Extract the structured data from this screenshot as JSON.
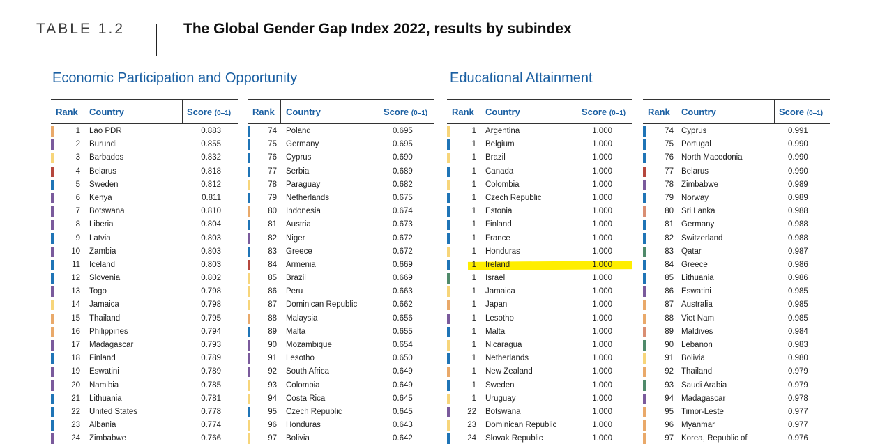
{
  "header": {
    "table_label": "TABLE 1.2",
    "title": "The Global Gender Gap Index 2022, results by subindex"
  },
  "colors": {
    "title_blue": "#1a5fa2",
    "highlight": "#ffee00",
    "bar_palette": {
      "orange": "#e9a96a",
      "purple": "#7a5a9c",
      "yellow": "#f7d57a",
      "red": "#b5473d",
      "blue": "#1f74b6",
      "green": "#4f8a6a",
      "salmon": "#d98e73"
    }
  },
  "sections": [
    {
      "title": "Economic Participation and Opportunity"
    },
    {
      "title": "Educational Attainment"
    }
  ],
  "columns_header": {
    "rank": "Rank",
    "country": "Country",
    "score": "Score",
    "score_unit": "(0–1)"
  },
  "tables": [
    {
      "rows": [
        {
          "rank": "1",
          "country": "Lao PDR",
          "score": "0.883",
          "color": "orange"
        },
        {
          "rank": "2",
          "country": "Burundi",
          "score": "0.855",
          "color": "purple"
        },
        {
          "rank": "3",
          "country": "Barbados",
          "score": "0.832",
          "color": "yellow"
        },
        {
          "rank": "4",
          "country": "Belarus",
          "score": "0.818",
          "color": "red"
        },
        {
          "rank": "5",
          "country": "Sweden",
          "score": "0.812",
          "color": "blue"
        },
        {
          "rank": "6",
          "country": "Kenya",
          "score": "0.811",
          "color": "purple"
        },
        {
          "rank": "7",
          "country": "Botswana",
          "score": "0.810",
          "color": "purple"
        },
        {
          "rank": "8",
          "country": "Liberia",
          "score": "0.804",
          "color": "purple"
        },
        {
          "rank": "9",
          "country": "Latvia",
          "score": "0.803",
          "color": "blue"
        },
        {
          "rank": "10",
          "country": "Zambia",
          "score": "0.803",
          "color": "purple"
        },
        {
          "rank": "11",
          "country": "Iceland",
          "score": "0.803",
          "color": "blue"
        },
        {
          "rank": "12",
          "country": "Slovenia",
          "score": "0.802",
          "color": "blue"
        },
        {
          "rank": "13",
          "country": "Togo",
          "score": "0.798",
          "color": "purple"
        },
        {
          "rank": "14",
          "country": "Jamaica",
          "score": "0.798",
          "color": "yellow"
        },
        {
          "rank": "15",
          "country": "Thailand",
          "score": "0.795",
          "color": "orange"
        },
        {
          "rank": "16",
          "country": "Philippines",
          "score": "0.794",
          "color": "orange"
        },
        {
          "rank": "17",
          "country": "Madagascar",
          "score": "0.793",
          "color": "purple"
        },
        {
          "rank": "18",
          "country": "Finland",
          "score": "0.789",
          "color": "blue"
        },
        {
          "rank": "19",
          "country": "Eswatini",
          "score": "0.789",
          "color": "purple"
        },
        {
          "rank": "20",
          "country": "Namibia",
          "score": "0.785",
          "color": "purple"
        },
        {
          "rank": "21",
          "country": "Lithuania",
          "score": "0.781",
          "color": "blue"
        },
        {
          "rank": "22",
          "country": "United States",
          "score": "0.778",
          "color": "blue"
        },
        {
          "rank": "23",
          "country": "Albania",
          "score": "0.774",
          "color": "blue"
        },
        {
          "rank": "24",
          "country": "Zimbabwe",
          "score": "0.766",
          "color": "purple"
        }
      ]
    },
    {
      "rows": [
        {
          "rank": "74",
          "country": "Poland",
          "score": "0.695",
          "color": "blue"
        },
        {
          "rank": "75",
          "country": "Germany",
          "score": "0.695",
          "color": "blue"
        },
        {
          "rank": "76",
          "country": "Cyprus",
          "score": "0.690",
          "color": "blue"
        },
        {
          "rank": "77",
          "country": "Serbia",
          "score": "0.689",
          "color": "blue"
        },
        {
          "rank": "78",
          "country": "Paraguay",
          "score": "0.682",
          "color": "yellow"
        },
        {
          "rank": "79",
          "country": "Netherlands",
          "score": "0.675",
          "color": "blue"
        },
        {
          "rank": "80",
          "country": "Indonesia",
          "score": "0.674",
          "color": "orange"
        },
        {
          "rank": "81",
          "country": "Austria",
          "score": "0.673",
          "color": "blue"
        },
        {
          "rank": "82",
          "country": "Niger",
          "score": "0.672",
          "color": "purple"
        },
        {
          "rank": "83",
          "country": "Greece",
          "score": "0.672",
          "color": "blue"
        },
        {
          "rank": "84",
          "country": "Armenia",
          "score": "0.669",
          "color": "red"
        },
        {
          "rank": "85",
          "country": "Brazil",
          "score": "0.669",
          "color": "yellow"
        },
        {
          "rank": "86",
          "country": "Peru",
          "score": "0.663",
          "color": "yellow"
        },
        {
          "rank": "87",
          "country": "Dominican Republic",
          "score": "0.662",
          "color": "yellow"
        },
        {
          "rank": "88",
          "country": "Malaysia",
          "score": "0.656",
          "color": "orange"
        },
        {
          "rank": "89",
          "country": "Malta",
          "score": "0.655",
          "color": "blue"
        },
        {
          "rank": "90",
          "country": "Mozambique",
          "score": "0.654",
          "color": "purple"
        },
        {
          "rank": "91",
          "country": "Lesotho",
          "score": "0.650",
          "color": "purple"
        },
        {
          "rank": "92",
          "country": "South Africa",
          "score": "0.649",
          "color": "purple"
        },
        {
          "rank": "93",
          "country": "Colombia",
          "score": "0.649",
          "color": "yellow"
        },
        {
          "rank": "94",
          "country": "Costa Rica",
          "score": "0.645",
          "color": "yellow"
        },
        {
          "rank": "95",
          "country": "Czech Republic",
          "score": "0.645",
          "color": "blue"
        },
        {
          "rank": "96",
          "country": "Honduras",
          "score": "0.643",
          "color": "yellow"
        },
        {
          "rank": "97",
          "country": "Bolivia",
          "score": "0.642",
          "color": "yellow"
        }
      ]
    },
    {
      "rows": [
        {
          "rank": "1",
          "country": "Argentina",
          "score": "1.000",
          "color": "yellow"
        },
        {
          "rank": "1",
          "country": "Belgium",
          "score": "1.000",
          "color": "blue"
        },
        {
          "rank": "1",
          "country": "Brazil",
          "score": "1.000",
          "color": "yellow"
        },
        {
          "rank": "1",
          "country": "Canada",
          "score": "1.000",
          "color": "blue"
        },
        {
          "rank": "1",
          "country": "Colombia",
          "score": "1.000",
          "color": "yellow"
        },
        {
          "rank": "1",
          "country": "Czech Republic",
          "score": "1.000",
          "color": "blue"
        },
        {
          "rank": "1",
          "country": "Estonia",
          "score": "1.000",
          "color": "blue"
        },
        {
          "rank": "1",
          "country": "Finland",
          "score": "1.000",
          "color": "blue"
        },
        {
          "rank": "1",
          "country": "France",
          "score": "1.000",
          "color": "blue"
        },
        {
          "rank": "1",
          "country": "Honduras",
          "score": "1.000",
          "color": "yellow"
        },
        {
          "rank": "1",
          "country": "Ireland",
          "score": "1.000",
          "color": "blue",
          "highlight": true
        },
        {
          "rank": "1",
          "country": "Israel",
          "score": "1.000",
          "color": "green"
        },
        {
          "rank": "1",
          "country": "Jamaica",
          "score": "1.000",
          "color": "yellow"
        },
        {
          "rank": "1",
          "country": "Japan",
          "score": "1.000",
          "color": "orange"
        },
        {
          "rank": "1",
          "country": "Lesotho",
          "score": "1.000",
          "color": "purple"
        },
        {
          "rank": "1",
          "country": "Malta",
          "score": "1.000",
          "color": "blue"
        },
        {
          "rank": "1",
          "country": "Nicaragua",
          "score": "1.000",
          "color": "yellow"
        },
        {
          "rank": "1",
          "country": "Netherlands",
          "score": "1.000",
          "color": "blue"
        },
        {
          "rank": "1",
          "country": "New Zealand",
          "score": "1.000",
          "color": "orange"
        },
        {
          "rank": "1",
          "country": "Sweden",
          "score": "1.000",
          "color": "blue"
        },
        {
          "rank": "1",
          "country": "Uruguay",
          "score": "1.000",
          "color": "yellow"
        },
        {
          "rank": "22",
          "country": "Botswana",
          "score": "1.000",
          "color": "purple"
        },
        {
          "rank": "23",
          "country": "Dominican Republic",
          "score": "1.000",
          "color": "yellow"
        },
        {
          "rank": "24",
          "country": "Slovak Republic",
          "score": "1.000",
          "color": "blue"
        }
      ]
    },
    {
      "rows": [
        {
          "rank": "74",
          "country": "Cyprus",
          "score": "0.991",
          "color": "blue"
        },
        {
          "rank": "75",
          "country": "Portugal",
          "score": "0.990",
          "color": "blue"
        },
        {
          "rank": "76",
          "country": "North Macedonia",
          "score": "0.990",
          "color": "blue"
        },
        {
          "rank": "77",
          "country": "Belarus",
          "score": "0.990",
          "color": "red"
        },
        {
          "rank": "78",
          "country": "Zimbabwe",
          "score": "0.989",
          "color": "purple"
        },
        {
          "rank": "79",
          "country": "Norway",
          "score": "0.989",
          "color": "blue"
        },
        {
          "rank": "80",
          "country": "Sri Lanka",
          "score": "0.988",
          "color": "salmon"
        },
        {
          "rank": "81",
          "country": "Germany",
          "score": "0.988",
          "color": "blue"
        },
        {
          "rank": "82",
          "country": "Switzerland",
          "score": "0.988",
          "color": "blue"
        },
        {
          "rank": "83",
          "country": "Qatar",
          "score": "0.987",
          "color": "green"
        },
        {
          "rank": "84",
          "country": "Greece",
          "score": "0.986",
          "color": "blue"
        },
        {
          "rank": "85",
          "country": "Lithuania",
          "score": "0.986",
          "color": "blue"
        },
        {
          "rank": "86",
          "country": "Eswatini",
          "score": "0.985",
          "color": "purple"
        },
        {
          "rank": "87",
          "country": "Australia",
          "score": "0.985",
          "color": "orange"
        },
        {
          "rank": "88",
          "country": "Viet Nam",
          "score": "0.985",
          "color": "orange"
        },
        {
          "rank": "89",
          "country": "Maldives",
          "score": "0.984",
          "color": "salmon"
        },
        {
          "rank": "90",
          "country": "Lebanon",
          "score": "0.983",
          "color": "green"
        },
        {
          "rank": "91",
          "country": "Bolivia",
          "score": "0.980",
          "color": "yellow"
        },
        {
          "rank": "92",
          "country": "Thailand",
          "score": "0.979",
          "color": "orange"
        },
        {
          "rank": "93",
          "country": "Saudi Arabia",
          "score": "0.979",
          "color": "green"
        },
        {
          "rank": "94",
          "country": "Madagascar",
          "score": "0.978",
          "color": "purple"
        },
        {
          "rank": "95",
          "country": "Timor-Leste",
          "score": "0.977",
          "color": "orange"
        },
        {
          "rank": "96",
          "country": "Myanmar",
          "score": "0.977",
          "color": "orange"
        },
        {
          "rank": "97",
          "country": "Korea, Republic of",
          "score": "0.976",
          "color": "orange"
        }
      ]
    }
  ]
}
